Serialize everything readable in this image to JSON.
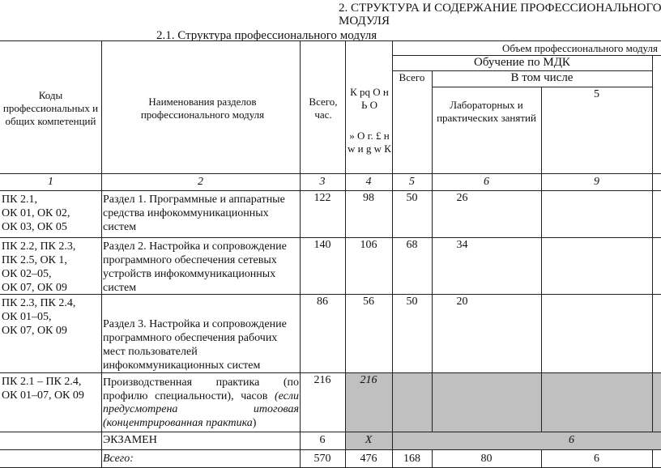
{
  "heading": {
    "line1": "2. СТРУКТУРА И СОДЕРЖАНИЕ ПРОФЕССИОНАЛЬНОГО",
    "line2": "МОДУЛЯ",
    "subtitle": "2.1. Структура профессионального модуля"
  },
  "header": {
    "codes": "Коды профессиональных и общих компетенций",
    "sections": "Наименования разделов профессионального модуля",
    "total_hours": "Всего, час.",
    "col4_garbled_top": "К pq О н Ь О",
    "col4_garbled_bottom": "» О г. £ н w и g w К",
    "volume": "Объем профессионального модуля",
    "mdk": "Обучение по МДК",
    "mdk_total": "Всего",
    "including": "В том числе",
    "lab": "Лабораторных и практических занятий",
    "col_five": "5"
  },
  "col_numbers": [
    "1",
    "2",
    "3",
    "4",
    "5",
    "6",
    "9"
  ],
  "rows": [
    {
      "codes": "ПК 2.1,\nОК 01, ОК 02,\nОК 03, ОК 05",
      "name": "Раздел 1. Программные и аппаратные средства инфокоммуникационных систем",
      "c3": "122",
      "c4": "98",
      "c5": "50",
      "c6": "26"
    },
    {
      "codes": "ПК 2.2, ПК 2.3,\nПК 2.5, ОК 1,\nОК 02–05,\nОК 07, ОК 09",
      "name": "Раздел 2. Настройка и сопровождение программного обеспечения сетевых устройств инфокоммуникационных систем",
      "c3": "140",
      "c4": "106",
      "c5": "68",
      "c6": "34"
    },
    {
      "codes": "ПК 2.3, ПК 2.4,\nОК 01–05,\nОК 07, ОК 09",
      "name": "Раздел 3. Настройка и сопровождение программного обеспечения рабочих мест пользователей инфокоммуникационных систем",
      "c3": "86",
      "c4": "56",
      "c5": "50",
      "c6": "20"
    }
  ],
  "practice": {
    "codes": "ПК 2.1 – ПК 2.4,\nОК 01–07, ОК 09",
    "name_plain": "Производственная практика (по профилю специальности), часов ",
    "name_italic": "(если предусмотрена итоговая (концентрированная практика",
    "name_end": ")",
    "c3": "216",
    "c4": "216"
  },
  "exam": {
    "name": "ЭКЗАМЕН",
    "c3": "6",
    "c4": "X",
    "c6": "6"
  },
  "total": {
    "name": "Всего:",
    "c3": "570",
    "c4": "476",
    "c5": "168",
    "c6": "80",
    "c9": "6"
  }
}
